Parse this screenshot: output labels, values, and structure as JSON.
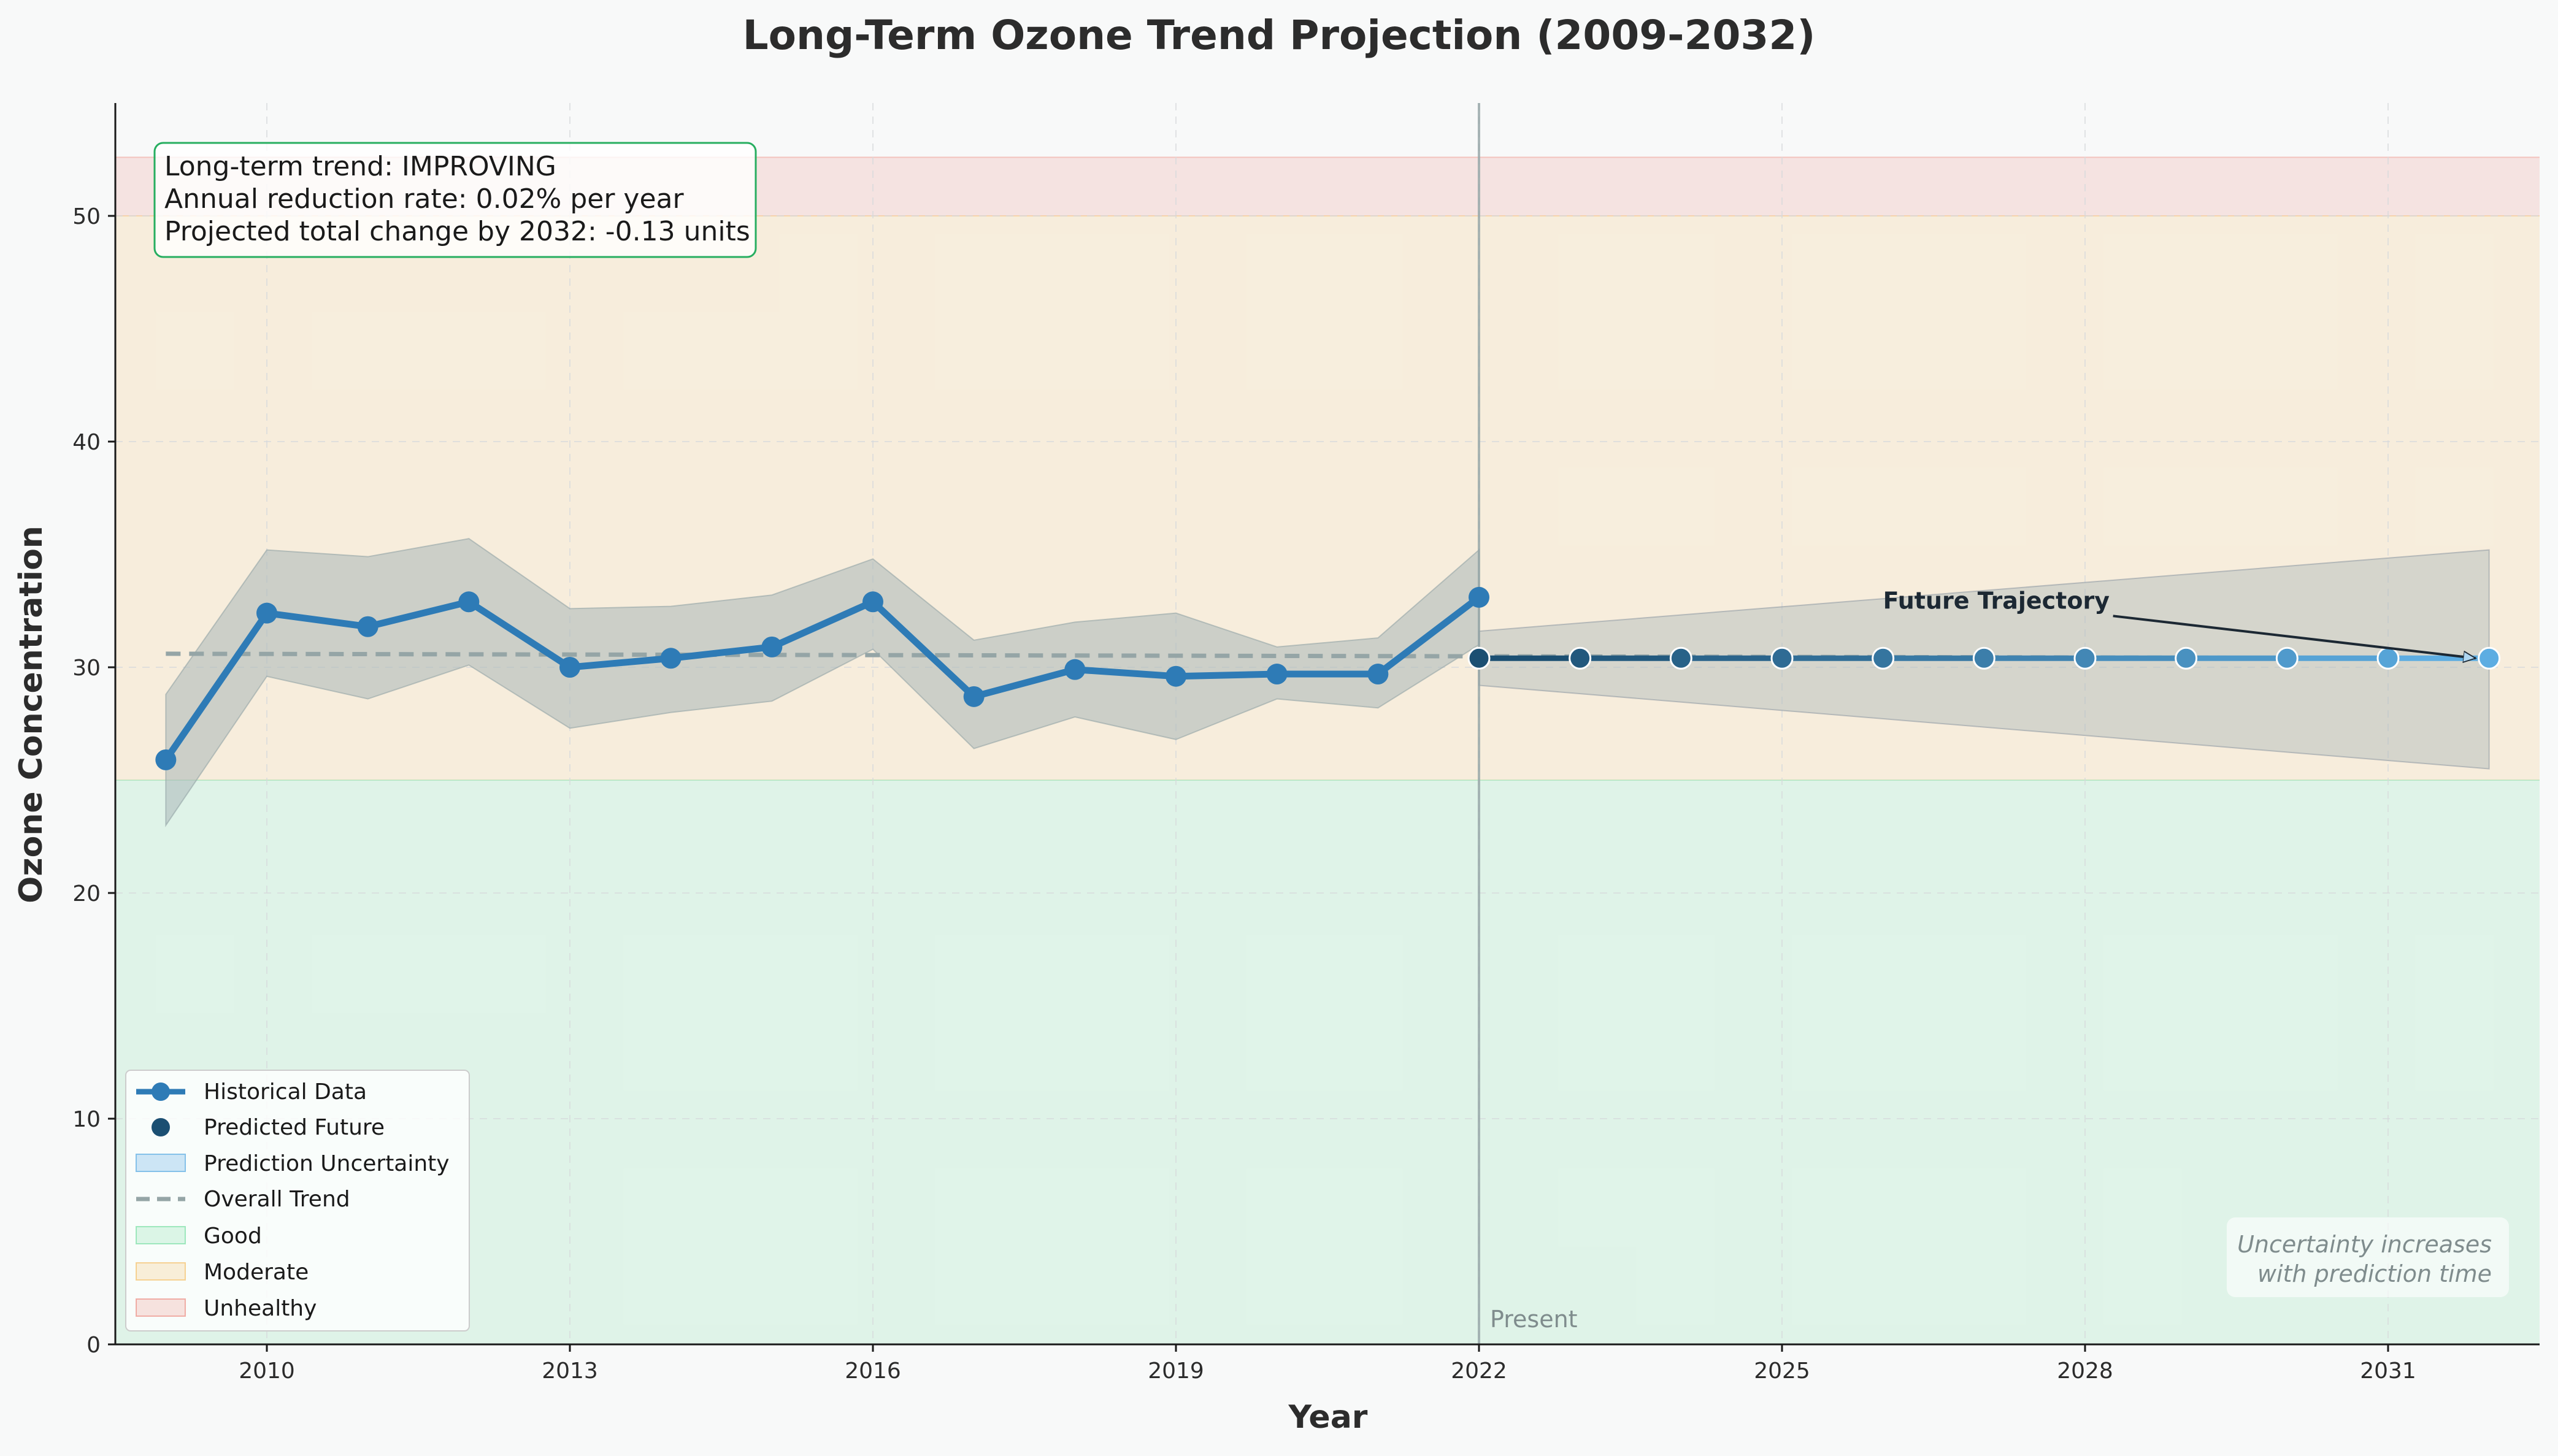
{
  "chart_data": {
    "type": "line",
    "title": "Long-Term Ozone Trend Projection (2009-2032)",
    "xlabel": "Year",
    "ylabel": "Ozone Concentration",
    "xlim": [
      2008.5,
      2032.5
    ],
    "ylim": [
      0,
      55
    ],
    "x_ticks": [
      2010,
      2013,
      2016,
      2019,
      2022,
      2025,
      2028,
      2031
    ],
    "y_ticks": [
      0,
      10,
      20,
      30,
      40,
      50
    ],
    "grid": true,
    "legend_position": "lower-left",
    "zones": [
      {
        "name": "Good",
        "from": 0,
        "to": 25,
        "color": "#2ecc71"
      },
      {
        "name": "Moderate",
        "from": 25,
        "to": 50,
        "color": "#f39c12"
      },
      {
        "name": "Unhealthy",
        "from": 50,
        "to": 52.6,
        "color": "#e74c3c"
      }
    ],
    "historical": {
      "name": "Historical Data",
      "color": "#2e7bb6",
      "x": [
        2009,
        2010,
        2011,
        2012,
        2013,
        2014,
        2015,
        2016,
        2017,
        2018,
        2019,
        2020,
        2021,
        2022
      ],
      "y": [
        25.9,
        32.4,
        31.8,
        32.9,
        30.0,
        30.4,
        30.9,
        32.9,
        28.7,
        29.9,
        29.6,
        29.7,
        29.7,
        33.1
      ],
      "band_lower": [
        23.0,
        29.6,
        28.6,
        30.1,
        27.3,
        28.0,
        28.5,
        30.8,
        26.4,
        27.8,
        26.8,
        28.6,
        28.2,
        31.0
      ],
      "band_upper": [
        28.8,
        35.2,
        34.9,
        35.7,
        32.6,
        32.7,
        33.2,
        34.8,
        31.2,
        32.0,
        32.4,
        30.9,
        31.3,
        35.2
      ]
    },
    "predicted": {
      "name": "Predicted Future",
      "x": [
        2022,
        2023,
        2024,
        2025,
        2026,
        2027,
        2028,
        2029,
        2030,
        2031,
        2032
      ],
      "y": [
        30.4,
        30.4,
        30.4,
        30.4,
        30.4,
        30.4,
        30.4,
        30.4,
        30.4,
        30.4,
        30.4
      ],
      "color_start": "#1b4f72",
      "color_end": "#5dade2"
    },
    "uncertainty": {
      "name": "Prediction Uncertainty",
      "x": [
        2022,
        2032
      ],
      "lower": [
        29.2,
        25.5
      ],
      "upper": [
        31.6,
        35.2
      ]
    },
    "trend": {
      "name": "Overall Trend",
      "x": [
        2009,
        2032
      ],
      "y": [
        30.6,
        30.4
      ]
    },
    "present_line": {
      "x": 2022,
      "label": "Present"
    },
    "annotation": {
      "text": "Future Trajectory",
      "text_at": [
        2026,
        32.6
      ],
      "arrow_to": [
        2032,
        30.4
      ]
    },
    "info_box": [
      "Long-term trend: IMPROVING",
      "Annual reduction rate: 0.02% per year",
      "Projected total change by 2032: -0.13 units"
    ],
    "note": [
      "Uncertainty increases",
      "with prediction time"
    ],
    "legend": [
      {
        "label": "Historical Data",
        "kind": "line-marker"
      },
      {
        "label": "Predicted Future",
        "kind": "marker"
      },
      {
        "label": "Prediction Uncertainty",
        "kind": "patch"
      },
      {
        "label": "Overall Trend",
        "kind": "dashed"
      },
      {
        "label": "Good",
        "kind": "patch"
      },
      {
        "label": "Moderate",
        "kind": "patch"
      },
      {
        "label": "Unhealthy",
        "kind": "patch"
      }
    ]
  }
}
